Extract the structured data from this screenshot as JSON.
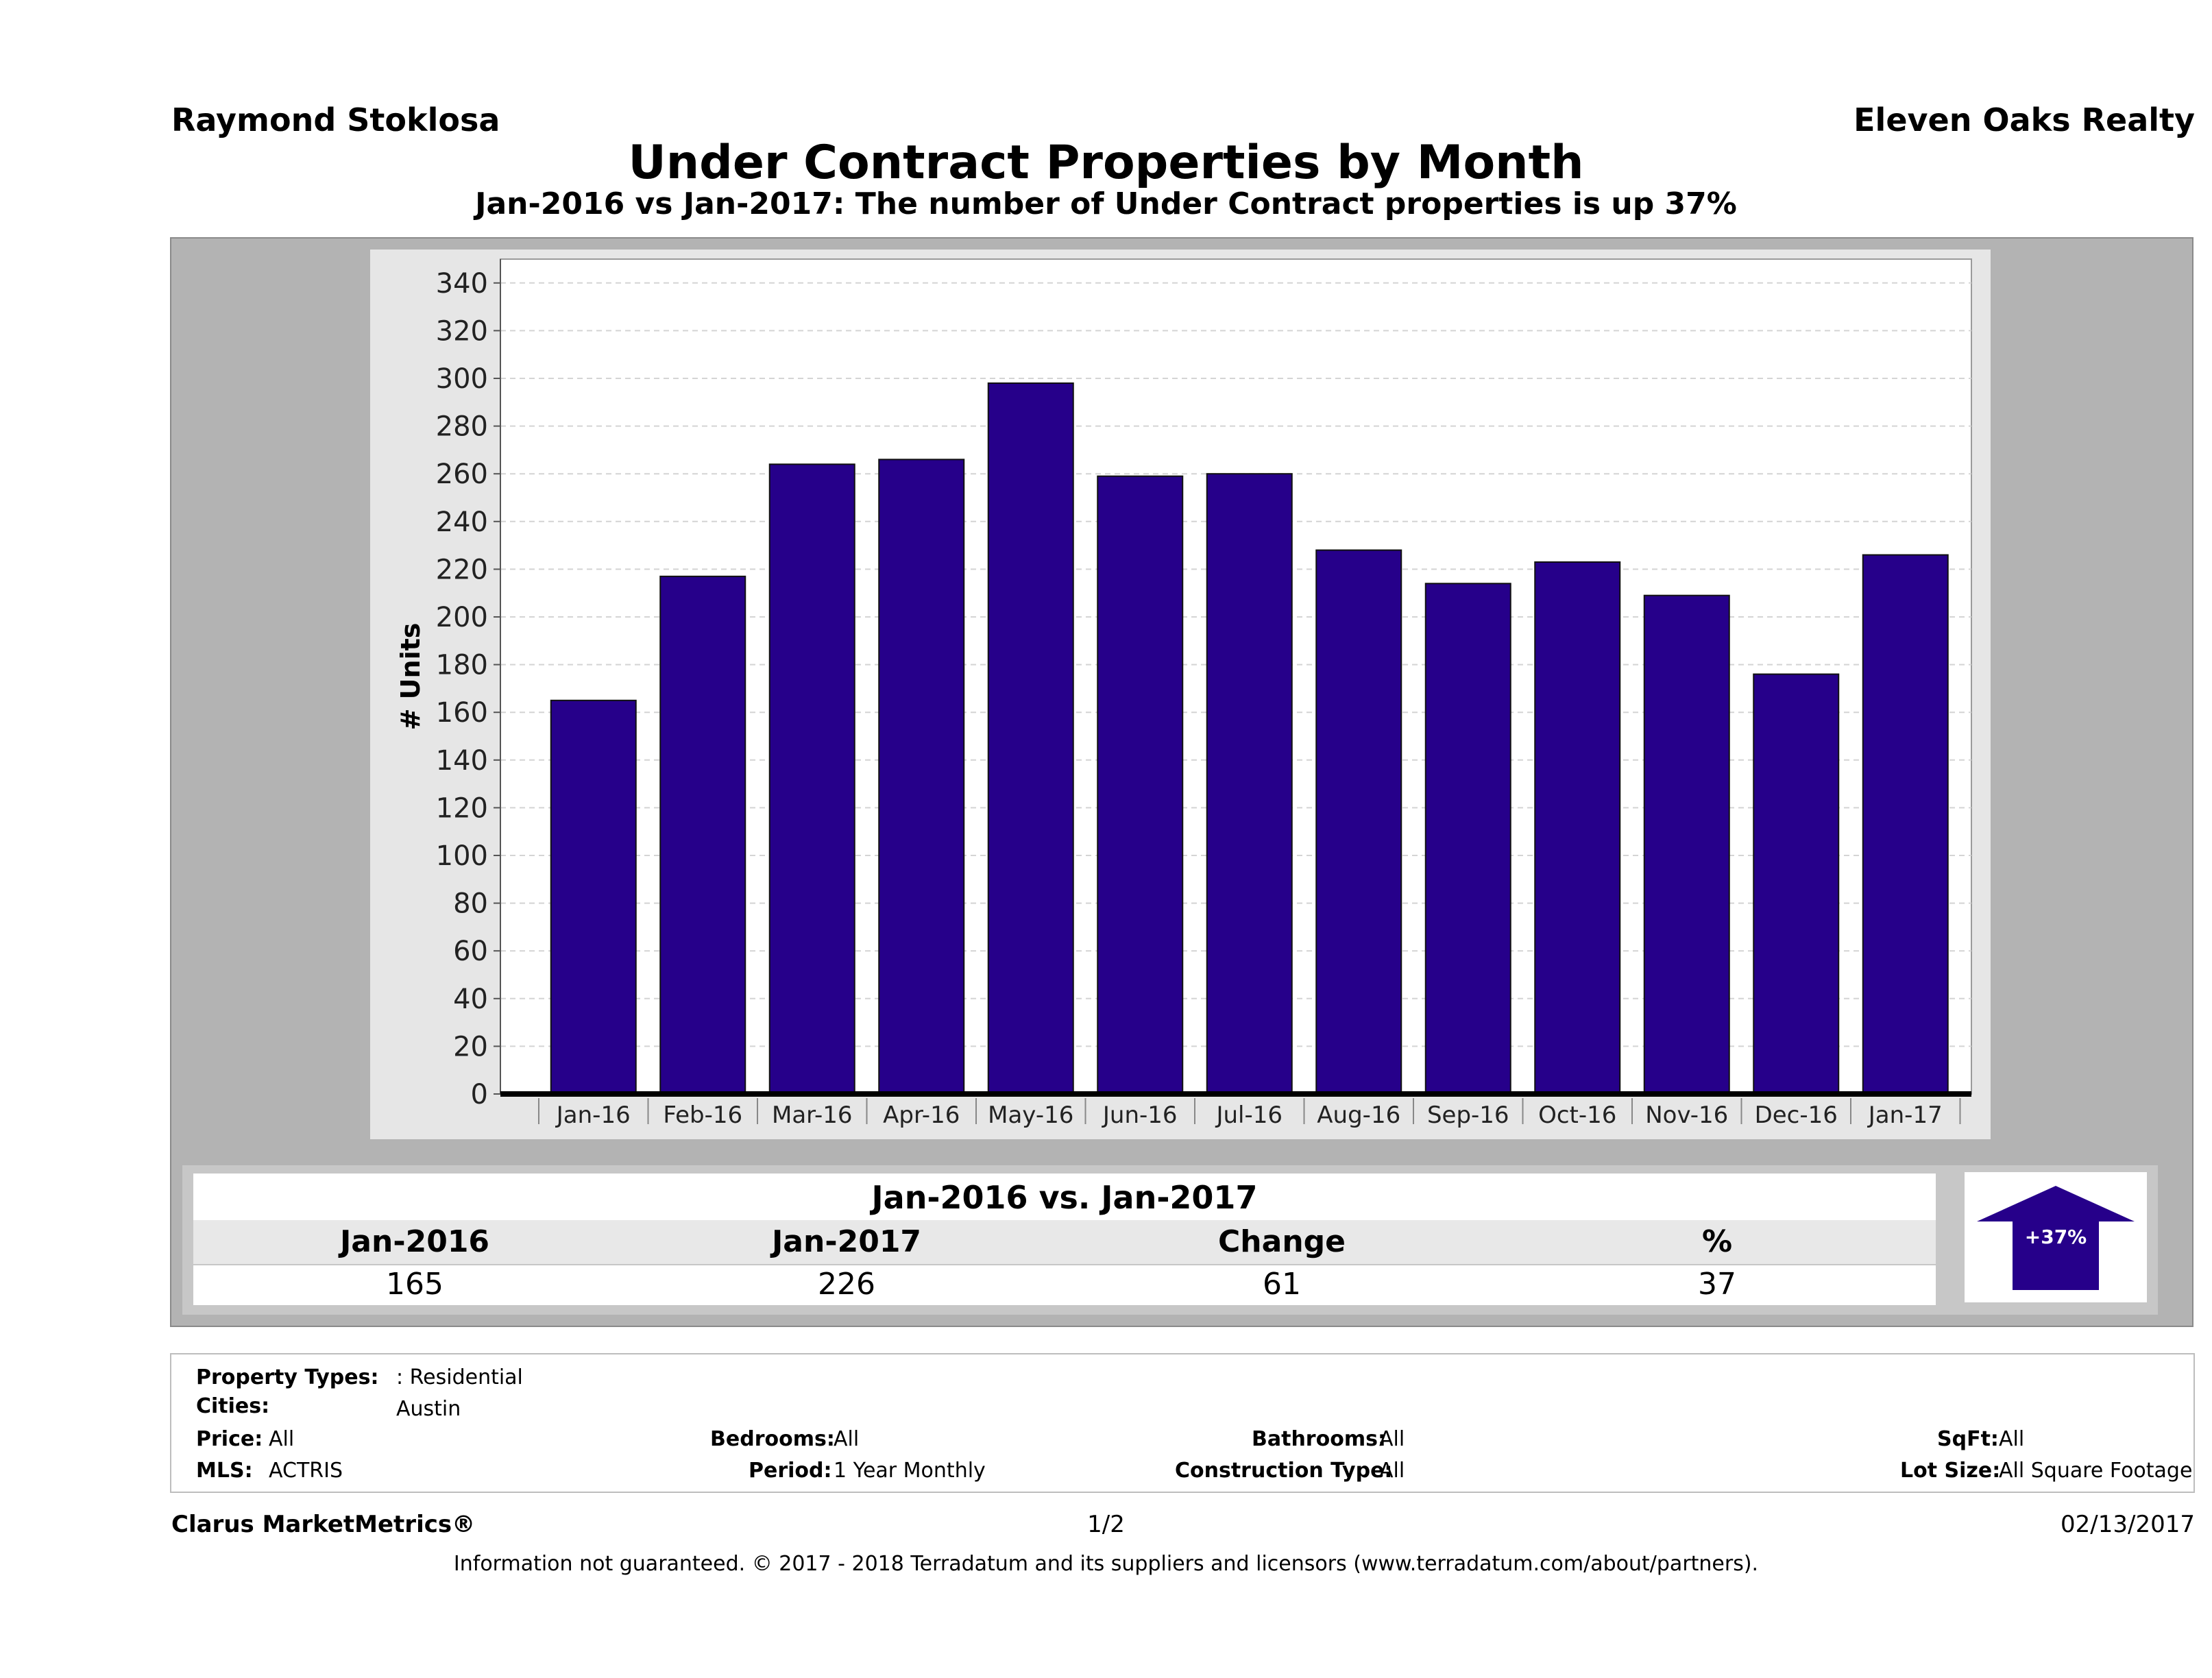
{
  "header": {
    "agent_name": "Raymond Stoklosa",
    "brokerage": "Eleven Oaks Realty"
  },
  "chart_data": {
    "type": "bar",
    "title": "Under Contract Properties by Month",
    "subtitle": "Jan-2016 vs Jan-2017: The number of Under Contract  properties is up 37%",
    "ylabel": "# Units",
    "xlabel": "",
    "ylim": [
      0,
      350
    ],
    "yticks": [
      0,
      20,
      40,
      60,
      80,
      100,
      120,
      140,
      160,
      180,
      200,
      220,
      240,
      260,
      280,
      300,
      320,
      340
    ],
    "categories": [
      "Jan-16",
      "Feb-16",
      "Mar-16",
      "Apr-16",
      "May-16",
      "Jun-16",
      "Jul-16",
      "Aug-16",
      "Sep-16",
      "Oct-16",
      "Nov-16",
      "Dec-16",
      "Jan-17"
    ],
    "values": [
      165,
      217,
      264,
      266,
      298,
      259,
      260,
      228,
      214,
      223,
      209,
      176,
      226
    ],
    "bar_color": "#26008a",
    "grid": true
  },
  "summary": {
    "heading": "Jan-2016 vs. Jan-2017",
    "columns": [
      {
        "label": "Jan-2016",
        "value": "165"
      },
      {
        "label": "Jan-2017",
        "value": "226"
      },
      {
        "label": "Change",
        "value": "61"
      },
      {
        "label": "%",
        "value": "37"
      }
    ],
    "badge": "+37%",
    "badge_color": "#26008a"
  },
  "criteria": {
    "property_types_label": "Property Types:",
    "property_types_value": ": Residential",
    "cities_label": "Cities:",
    "cities_value": "Austin",
    "price_label": "Price:",
    "price_value": "All",
    "bedrooms_label": "Bedrooms:",
    "bedrooms_value": "All",
    "bathrooms_label": "Bathrooms:",
    "bathrooms_value": "All",
    "sqft_label": "SqFt:",
    "sqft_value": "All",
    "mls_label": "MLS:",
    "mls_value": "ACTRIS",
    "period_label": "Period:",
    "period_value": "1 Year Monthly",
    "construction_label": "Construction Type:",
    "construction_value": "All",
    "lot_label": "Lot Size:",
    "lot_value": "All Square Footage"
  },
  "footer": {
    "product": "Clarus MarketMetrics®",
    "page": "1/2",
    "date": "02/13/2017",
    "disclaimer": "Information not guaranteed. © 2017 - 2018 Terradatum and its suppliers and licensors (www.terradatum.com/about/partners)."
  }
}
